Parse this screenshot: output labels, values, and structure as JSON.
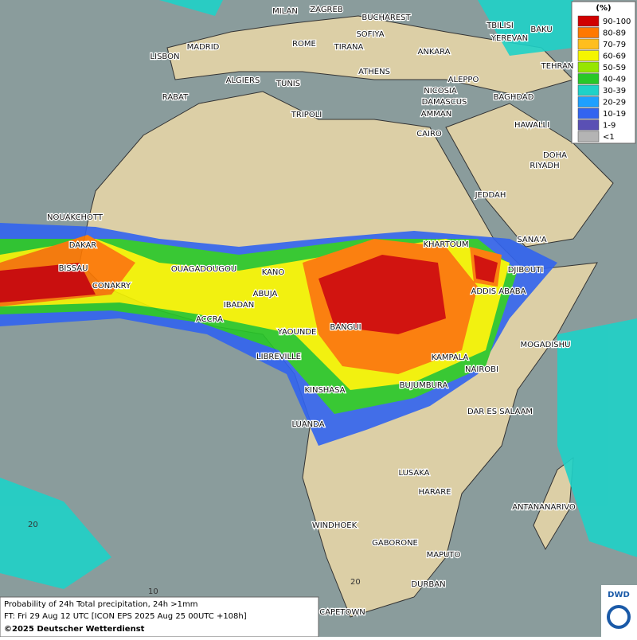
{
  "map": {
    "cities": [
      "MILAN",
      "ZAGREB",
      "BUCHAREST",
      "TBILISI",
      "BAKU",
      "SOFIYA",
      "YEREVAN",
      "MADRID",
      "ROME",
      "TIRANA",
      "ANKARA",
      "LISBON",
      "TEHRAN",
      "ATHENS",
      "ALGIERS",
      "TUNIS",
      "ALEPPO",
      "RABAT",
      "NICOSIA",
      "BAGHDAD",
      "DAMASCUS",
      "TRIPOLI",
      "AMMAN",
      "HAWALLI",
      "CAIRO",
      "DOHA",
      "RIYADH",
      "JEDDAH",
      "NOUAKCHOTT",
      "SANA'A",
      "DAKAR",
      "KHARTOUM",
      "BISSAU",
      "OUAGADOUGOU",
      "KANO",
      "DJIBOUTI",
      "CONAKRY",
      "ABUJA",
      "ADDIS ABABA",
      "IBADAN",
      "ACCRA",
      "BANGUI",
      "YAOUNDE",
      "MOGADISHU",
      "LIBREVILLE",
      "KAMPALA",
      "NAIROBI",
      "BUJUMBURA",
      "KINSHASA",
      "DAR ES SALAAM",
      "LUANDA",
      "LUSAKA",
      "HARARE",
      "ANTANANARIVO",
      "WINDHOEK",
      "GABORONE",
      "MAPUTO",
      "DURBAN",
      "CAPETOWN"
    ],
    "grid_labels": [
      "20",
      "10",
      "20"
    ]
  },
  "legend": {
    "title": "(%)",
    "entries": [
      {
        "label": "90-100",
        "color": "#d00000"
      },
      {
        "label": "80-89",
        "color": "#ff7800"
      },
      {
        "label": "70-79",
        "color": "#ffbe1e"
      },
      {
        "label": "60-69",
        "color": "#f5f500"
      },
      {
        "label": "50-59",
        "color": "#96e600"
      },
      {
        "label": "40-49",
        "color": "#28c828"
      },
      {
        "label": "30-39",
        "color": "#1ed2c8"
      },
      {
        "label": "20-29",
        "color": "#1ea0ff"
      },
      {
        "label": "10-19",
        "color": "#3264f0"
      },
      {
        "label": "1-9",
        "color": "#5a50b4"
      },
      {
        "label": "<1",
        "color": "#b4b4b4"
      }
    ]
  },
  "footer": {
    "line1": "Probability of 24h Total precipitation, 24h >1mm",
    "line2": "FT: Fri 29 Aug 12 UTC [ICON EPS 2025 Aug 25 00UTC +108h]",
    "line3": "©2025 Deutscher Wetterdienst"
  },
  "logo": "DWD"
}
